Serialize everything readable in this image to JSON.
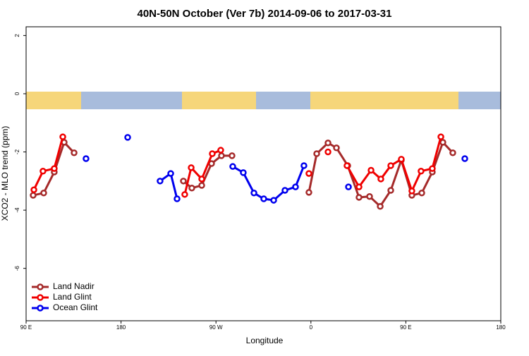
{
  "chart_data": {
    "type": "line",
    "title": "40N-50N October (Ver 7b)   2014-09-06 to 2017-03-31",
    "xlabel": "Longitude",
    "ylabel": "XCO2 - MLO trend (ppm)",
    "xlim": [
      90,
      540
    ],
    "ylim": [
      -7.8,
      2.3
    ],
    "xticks": [
      {
        "value": 90,
        "label": "90 E"
      },
      180,
      {
        "value": 270,
        "label": "90 W"
      },
      {
        "value": 360,
        "label": "0"
      },
      {
        "value": 450,
        "label": "90 E"
      },
      {
        "value": 540,
        "label": "180"
      }
    ],
    "yticks": [
      2,
      0,
      -2,
      -4,
      -6
    ],
    "legend": "bottom-left",
    "series": [
      {
        "name": "Land Nadir",
        "color": "#a52a2a",
        "x": [
          96.7,
          106.7,
          116.7,
          126.1,
          135.5,
          null,
          239.1,
          247.1,
          256.5,
          265.8,
          275.2,
          285.2,
          null,
          358.1,
          365.5,
          376.2,
          384.2,
          394.9,
          405.6,
          415.6,
          425.7,
          435.7,
          445.7,
          455.7,
          465.1,
          475.1,
          485.1,
          494.5
        ],
        "values": [
          -3.49,
          -3.41,
          -2.69,
          -1.67,
          -2.03,
          null,
          -3.0,
          -3.24,
          -3.15,
          -2.4,
          -2.13,
          -2.13,
          null,
          -3.39,
          -2.06,
          -1.69,
          -1.86,
          -2.47,
          -3.56,
          -3.53,
          -3.87,
          -3.32,
          -2.28,
          -3.49,
          -3.41,
          -2.69,
          -1.67,
          -2.03
        ]
      },
      {
        "name": "Land Glint",
        "color": "#f00000",
        "x": [
          97.4,
          106,
          116.7,
          124.8,
          null,
          240.4,
          246.5,
          256.5,
          266.5,
          274.5,
          null,
          358.1,
          null,
          376.2,
          null,
          394.2,
          405.6,
          417,
          426.3,
          435.7,
          445.7,
          455.7,
          464.4,
          475.1,
          483.2
        ],
        "values": [
          -3.3,
          -2.66,
          -2.57,
          -1.48,
          null,
          -3.46,
          -2.54,
          -2.93,
          -2.06,
          -1.94,
          null,
          -2.74,
          null,
          -2.0,
          null,
          -2.47,
          -3.2,
          -2.63,
          -2.93,
          -2.47,
          -2.25,
          -3.34,
          -2.66,
          -2.57,
          -1.48
        ]
      },
      {
        "name": "Ocean Glint",
        "color": "#0000ee",
        "x": [
          146.8,
          null,
          186.3,
          null,
          217,
          227.1,
          233.1,
          null,
          285.9,
          295.9,
          306,
          315.3,
          324.7,
          335.4,
          345.4,
          353.4,
          null,
          395.6,
          null,
          505.9
        ],
        "values": [
          -2.23,
          null,
          -1.5,
          null,
          -3.0,
          -2.74,
          -3.61,
          null,
          -2.5,
          -2.71,
          -3.41,
          -3.61,
          -3.66,
          -3.32,
          -3.2,
          -2.47,
          null,
          -3.2,
          null,
          -2.23
        ]
      }
    ]
  }
}
